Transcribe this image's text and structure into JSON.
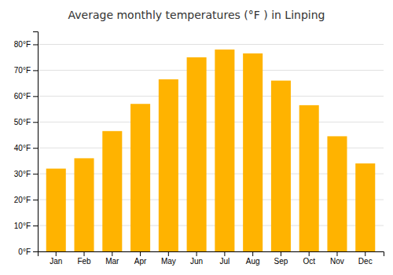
{
  "chart_data": {
    "type": "bar",
    "title": "Average monthly temperatures (°F ) in Linping",
    "categories": [
      "Jan",
      "Feb",
      "Mar",
      "Apr",
      "May",
      "Jun",
      "Jul",
      "Aug",
      "Sep",
      "Oct",
      "Nov",
      "Dec"
    ],
    "values": [
      32,
      36,
      46.5,
      57,
      66.5,
      75,
      78,
      76.5,
      66,
      56.5,
      44.5,
      34
    ],
    "color": "#FFB300",
    "ylim": [
      0,
      85
    ],
    "yticks": [
      {
        "value": 0,
        "label": "0°F"
      },
      {
        "value": 10,
        "label": "10°F"
      },
      {
        "value": 20,
        "label": "20°F"
      },
      {
        "value": 30,
        "label": "30°F"
      },
      {
        "value": 40,
        "label": "40°F"
      },
      {
        "value": 50,
        "label": "50°F"
      },
      {
        "value": 60,
        "label": "60°F"
      },
      {
        "value": 70,
        "label": "70°F"
      },
      {
        "value": 80,
        "label": "80°F"
      }
    ],
    "grid": true
  }
}
